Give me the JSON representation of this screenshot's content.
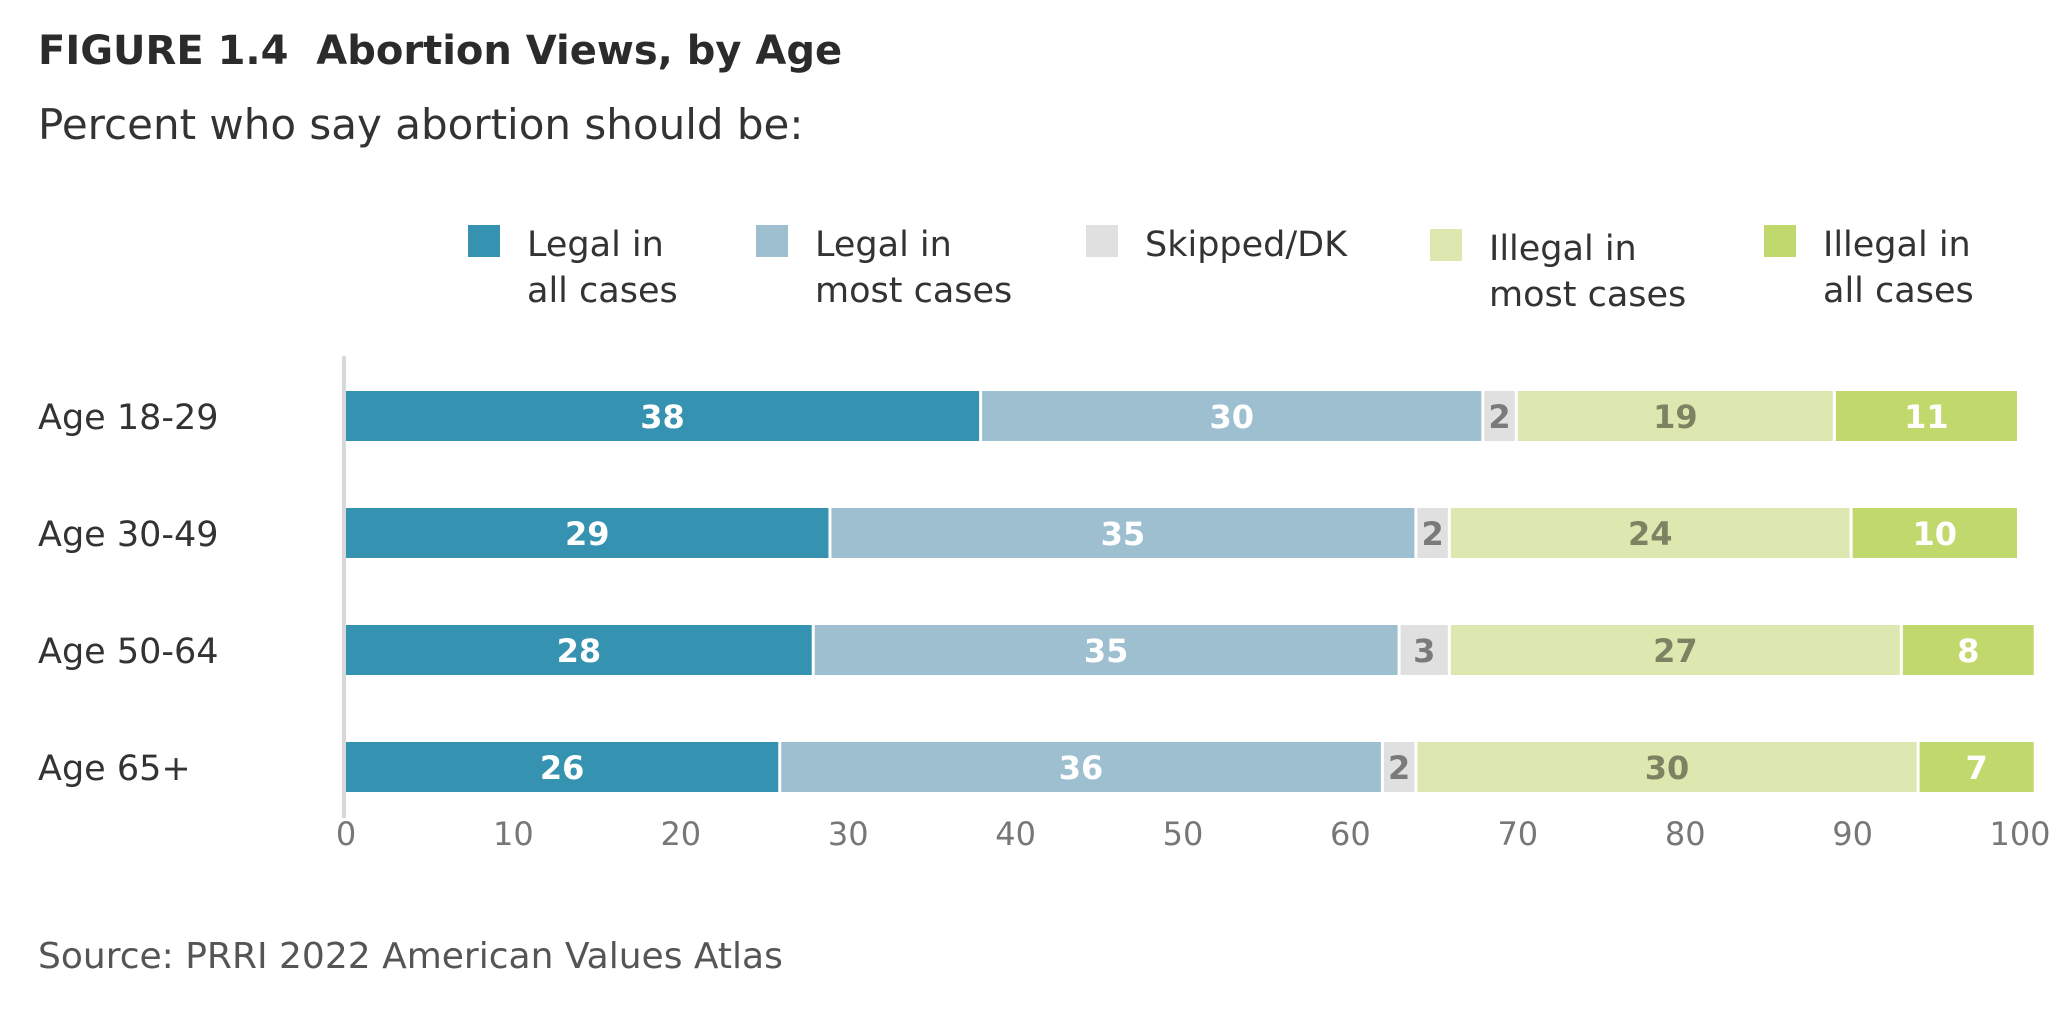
{
  "figure": {
    "title": "FIGURE 1.4  Abortion Views, by Age",
    "subtitle": "Percent who say abortion should be:",
    "source": "Source: PRRI 2022 American Values Atlas"
  },
  "chart_data": {
    "type": "bar",
    "orientation": "horizontal",
    "stacked": true,
    "title": "FIGURE 1.4  Abortion Views, by Age",
    "subtitle": "Percent who say abortion should be:",
    "categories": [
      "Age 18-29",
      "Age 30-49",
      "Age 50-64",
      "Age 65+"
    ],
    "series": [
      {
        "name": "Legal in all cases",
        "legend_lines": [
          "Legal in",
          "all cases"
        ],
        "color": "#3592b0",
        "label_color": "#ffffff",
        "values": [
          38,
          29,
          28,
          26
        ]
      },
      {
        "name": "Legal in most cases",
        "legend_lines": [
          "Legal in",
          "most cases"
        ],
        "color": "#9dbfcf",
        "label_color": "#ffffff",
        "values": [
          30,
          35,
          35,
          36
        ]
      },
      {
        "name": "Skipped/DK",
        "legend_lines": [
          "Skipped/DK"
        ],
        "color": "#e0e0e0",
        "label_color": "#7a7a7a",
        "values": [
          2,
          2,
          3,
          2
        ]
      },
      {
        "name": "Illegal in most cases",
        "legend_lines": [
          "Illegal in",
          "most cases"
        ],
        "color": "#dde8b0",
        "label_color": "#7d8262",
        "values": [
          19,
          24,
          27,
          30
        ]
      },
      {
        "name": "Illegal in all cases",
        "legend_lines": [
          "Illegal in",
          "all cases"
        ],
        "color": "#c1d96c",
        "label_color": "#ffffff",
        "values": [
          11,
          10,
          8,
          7
        ]
      }
    ],
    "xlim": [
      0,
      100
    ],
    "x_ticks": [
      0,
      10,
      20,
      30,
      40,
      50,
      60,
      70,
      80,
      90,
      100
    ],
    "xlabel": "",
    "ylabel": "",
    "grid": false,
    "legend_position": "top"
  }
}
